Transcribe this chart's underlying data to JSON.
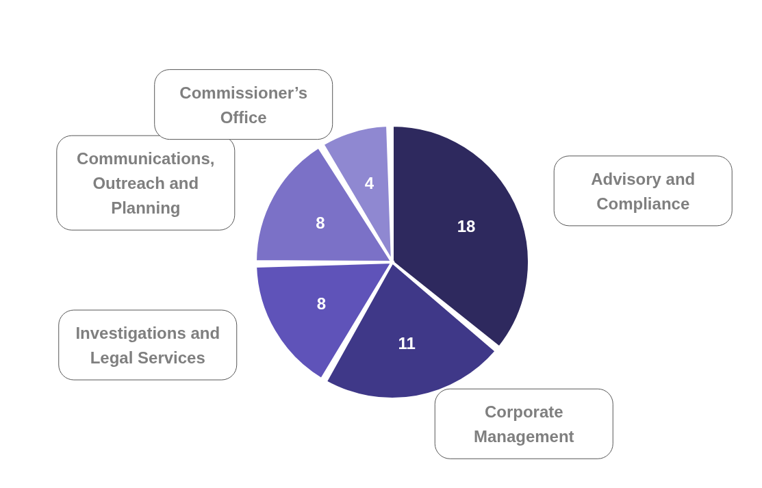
{
  "chart_data": {
    "type": "pie",
    "categories": [
      "Advisory and Compliance",
      "Corporate Management",
      "Investigations and Legal Services",
      "Communications, Outreach and Planning",
      "Commissioner’s Office"
    ],
    "values": [
      18,
      11,
      8,
      8,
      4
    ],
    "colors": [
      "#2e295e",
      "#3f3888",
      "#5f53b9",
      "#7b71c7",
      "#8f88d1"
    ],
    "data_labels": true
  }
}
